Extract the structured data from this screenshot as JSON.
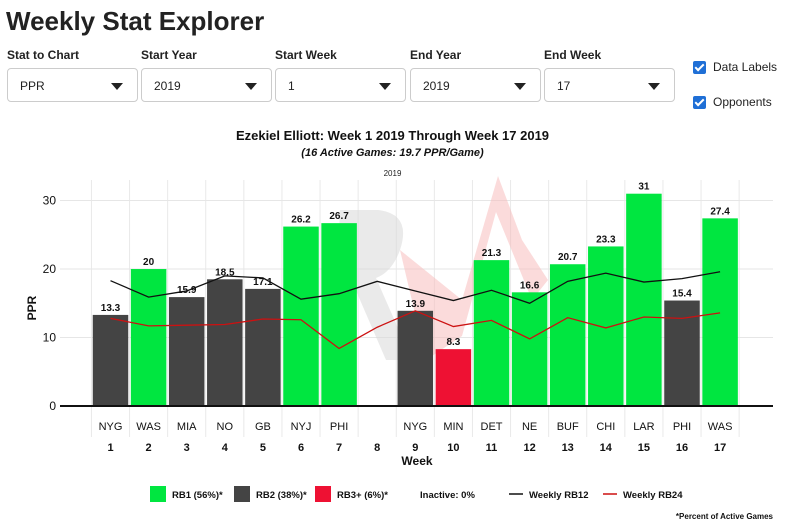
{
  "app": {
    "title": "Weekly Stat Explorer"
  },
  "controls": [
    {
      "label": "Stat to Chart",
      "value": "PPR"
    },
    {
      "label": "Start Year",
      "value": "2019"
    },
    {
      "label": "Start Week",
      "value": "1"
    },
    {
      "label": "End Year",
      "value": "2019"
    },
    {
      "label": "End Week",
      "value": "17"
    }
  ],
  "checkboxes": [
    {
      "label": "Data Labels",
      "checked": true
    },
    {
      "label": "Opponents",
      "checked": true
    }
  ],
  "colors": {
    "rb1": "#00e640",
    "rb2": "#444444",
    "rb3": "#ee1133",
    "rb12_line": "#111111",
    "rb24_line": "#cc1111",
    "checkbox": "#1f6fd6"
  },
  "chart_data": {
    "type": "bar",
    "title": "Ezekiel Elliott: Week 1 2019 Through Week 17 2019",
    "subtitle": "(16 Active Games: 19.7 PPR/Game)",
    "year_label": "2019",
    "xlabel": "Week",
    "ylabel": "PPR",
    "ylim": [
      0,
      33
    ],
    "yticks": [
      0,
      10,
      20,
      30
    ],
    "grid": true,
    "weeks": [
      "1",
      "2",
      "3",
      "4",
      "5",
      "6",
      "7",
      "8",
      "9",
      "10",
      "11",
      "12",
      "13",
      "14",
      "15",
      "16",
      "17"
    ],
    "opponents": [
      "NYG",
      "WAS",
      "MIA",
      "NO",
      "GB",
      "NYJ",
      "PHI",
      "",
      "NYG",
      "MIN",
      "DET",
      "NE",
      "BUF",
      "CHI",
      "LAR",
      "PHI",
      "WAS"
    ],
    "values": [
      13.3,
      20,
      15.9,
      18.5,
      17.1,
      26.2,
      26.7,
      null,
      13.9,
      8.3,
      21.3,
      16.6,
      20.7,
      23.3,
      31,
      15.4,
      27.4
    ],
    "value_labels": [
      "13.3",
      "20",
      "15.9",
      "18.5",
      "17.1",
      "26.2",
      "26.7",
      "",
      "13.9",
      "8.3",
      "21.3",
      "16.6",
      "20.7",
      "23.3",
      "31",
      "15.4",
      "27.4"
    ],
    "tiers": [
      "RB2",
      "RB1",
      "RB2",
      "RB2",
      "RB2",
      "RB1",
      "RB1",
      "",
      "RB2",
      "RB3+",
      "RB1",
      "RB1",
      "RB1",
      "RB1",
      "RB1",
      "RB2",
      "RB1"
    ],
    "lines": [
      {
        "name": "Weekly RB12",
        "values": [
          18.3,
          15.9,
          16.8,
          19.0,
          18.7,
          15.6,
          16.4,
          18.2,
          16.8,
          15.4,
          16.9,
          15.0,
          18.2,
          19.4,
          18.1,
          18.6,
          19.6
        ]
      },
      {
        "name": "Weekly RB24",
        "values": [
          12.8,
          11.7,
          11.8,
          11.9,
          12.7,
          12.6,
          8.4,
          11.5,
          13.9,
          11.6,
          12.5,
          9.8,
          12.9,
          11.4,
          13.0,
          12.8,
          13.6
        ]
      }
    ],
    "legend": [
      {
        "label": "RB1 (56%)*",
        "kind": "box",
        "color_key": "rb1"
      },
      {
        "label": "RB2 (38%)*",
        "kind": "box",
        "color_key": "rb2"
      },
      {
        "label": "RB3+ (6%)*",
        "kind": "box",
        "color_key": "rb3"
      },
      {
        "label": "Inactive: 0%",
        "kind": "text",
        "color_key": ""
      },
      {
        "label": "Weekly RB12",
        "kind": "line",
        "color_key": "rb12_line"
      },
      {
        "label": "Weekly RB24",
        "kind": "line",
        "color_key": "rb24_line"
      }
    ],
    "legend_position": "bottom",
    "footnote": "*Percent of Active Games"
  }
}
